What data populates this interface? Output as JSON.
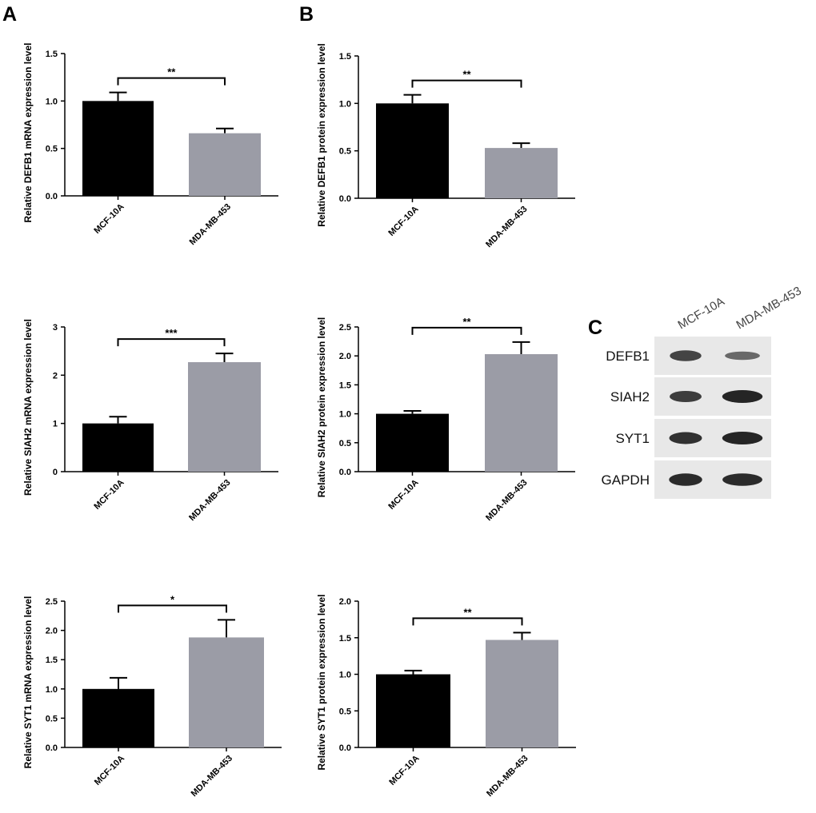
{
  "panels": {
    "A": "A",
    "B": "B",
    "C": "C"
  },
  "colors": {
    "bar_control": "#000000",
    "bar_cancer": "#9b9ca6",
    "axis": "#000000",
    "blot_background": "#e8e8e8"
  },
  "chart_data": [
    {
      "type": "bar",
      "panel": "A",
      "categories": [
        "MCF-10A",
        "MDA-MB-453"
      ],
      "values": [
        1.0,
        0.66
      ],
      "errors": [
        0.09,
        0.05
      ],
      "ylabel": "Relative DEFB1 mRNA expression level",
      "ylim": [
        0,
        1.5
      ],
      "yticks": [
        "0.0",
        "0.5",
        "1.0",
        "1.5"
      ],
      "significance": "**"
    },
    {
      "type": "bar",
      "panel": "B",
      "categories": [
        "MCF-10A",
        "MDA-MB-453"
      ],
      "values": [
        1.0,
        0.53
      ],
      "errors": [
        0.09,
        0.05
      ],
      "ylabel": "Relative DEFB1 protein expression level",
      "ylim": [
        0,
        1.5
      ],
      "yticks": [
        "0.0",
        "0.5",
        "1.0",
        "1.5"
      ],
      "significance": "**"
    },
    {
      "type": "bar",
      "panel": "A",
      "categories": [
        "MCF-10A",
        "MDA-MB-453"
      ],
      "values": [
        1.0,
        2.27
      ],
      "errors": [
        0.14,
        0.18
      ],
      "ylabel": "Relative SIAH2 mRNA expression level",
      "ylim": [
        0,
        3
      ],
      "yticks": [
        "0",
        "1",
        "2",
        "3"
      ],
      "significance": "***"
    },
    {
      "type": "bar",
      "panel": "B",
      "categories": [
        "MCF-10A",
        "MDA-MB-453"
      ],
      "values": [
        1.0,
        2.03
      ],
      "errors": [
        0.05,
        0.21
      ],
      "ylabel": "Relative SIAH2 protein expression level",
      "ylim": [
        0,
        2.5
      ],
      "yticks": [
        "0.0",
        "0.5",
        "1.0",
        "1.5",
        "2.0",
        "2.5"
      ],
      "significance": "**"
    },
    {
      "type": "bar",
      "panel": "A",
      "categories": [
        "MCF-10A",
        "MDA-MB-453"
      ],
      "values": [
        1.0,
        1.88
      ],
      "errors": [
        0.19,
        0.3
      ],
      "ylabel": "Relative SYT1 mRNA expression level",
      "ylim": [
        0,
        2.5
      ],
      "yticks": [
        "0.0",
        "0.5",
        "1.0",
        "1.5",
        "2.0",
        "2.5"
      ],
      "significance": "*"
    },
    {
      "type": "bar",
      "panel": "B",
      "categories": [
        "MCF-10A",
        "MDA-MB-453"
      ],
      "values": [
        1.0,
        1.47
      ],
      "errors": [
        0.05,
        0.1
      ],
      "ylabel": "Relative SYT1 protein expression level",
      "ylim": [
        0,
        2.0
      ],
      "yticks": [
        "0.0",
        "0.5",
        "1.0",
        "1.5",
        "2.0"
      ],
      "significance": "**"
    }
  ],
  "western_blot": {
    "lanes": [
      "MCF-10A",
      "MDA-MB-453"
    ],
    "rows": [
      {
        "label": "DEFB1",
        "intensities": [
          0.75,
          0.45
        ]
      },
      {
        "label": "SIAH2",
        "intensities": [
          0.8,
          1.0
        ]
      },
      {
        "label": "SYT1",
        "intensities": [
          0.9,
          1.0
        ]
      },
      {
        "label": "GAPDH",
        "intensities": [
          0.95,
          0.95
        ]
      }
    ]
  }
}
